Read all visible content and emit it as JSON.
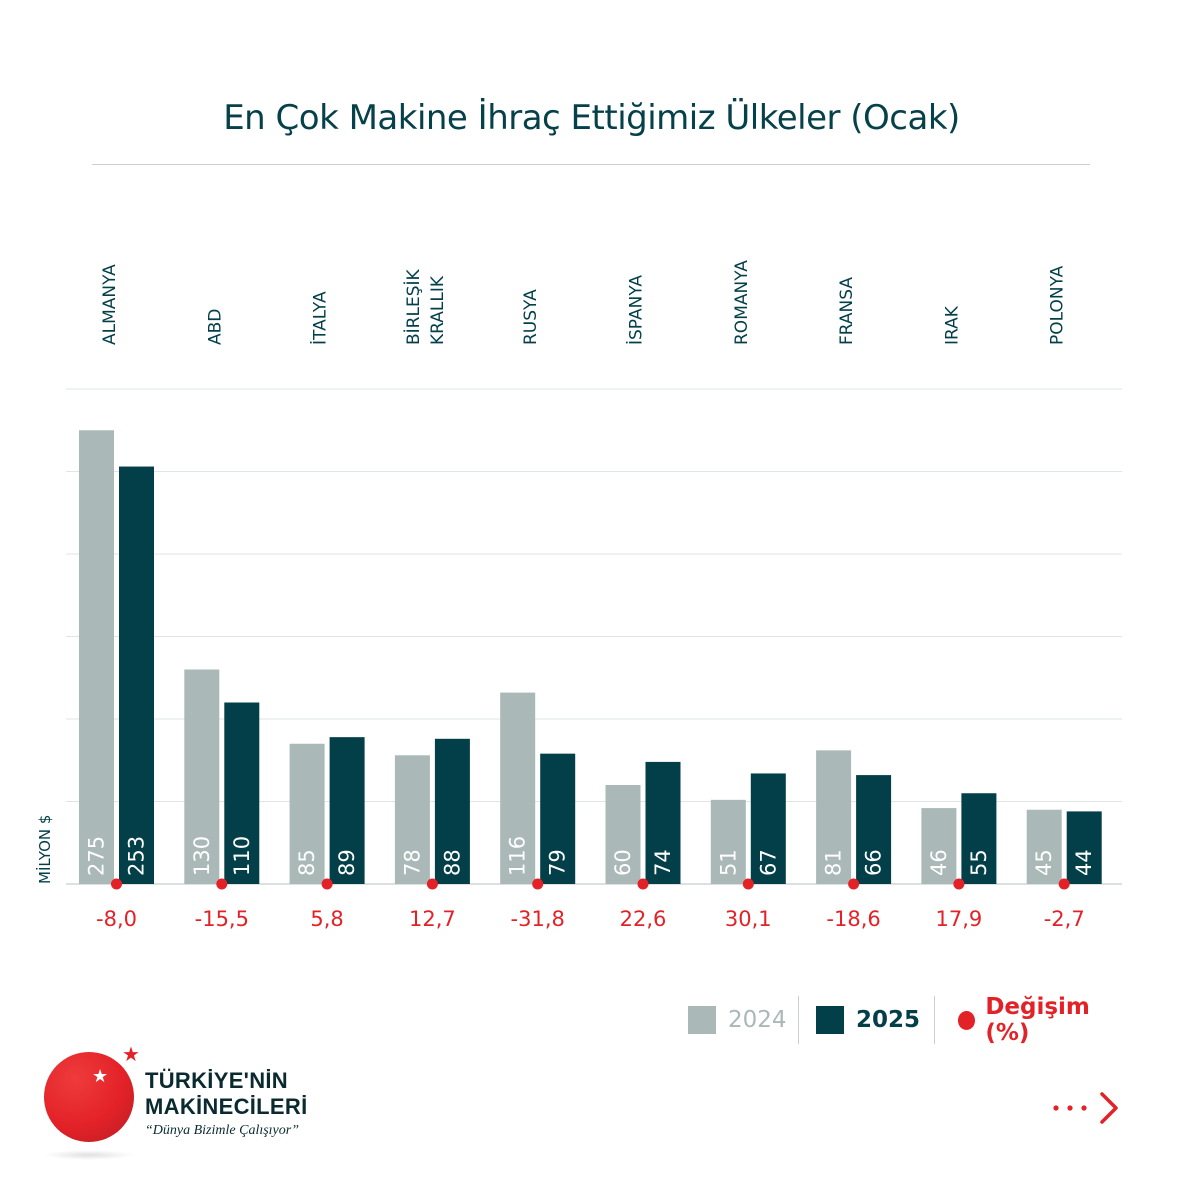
{
  "title": "En Çok Makine İhraç Ettiğimiz Ülkeler (Ocak)",
  "colors": {
    "bar_2024": "#aab8b8",
    "bar_2025": "#023f48",
    "change": "#e32228",
    "title": "#06414a",
    "grid": "#dfe4e4"
  },
  "chart_data": {
    "type": "bar",
    "title": "En Çok Makine İhraç Ettiğimiz Ülkeler (Ocak)",
    "ylabel": "MİLYON $",
    "ylim": [
      0,
      300
    ],
    "grid": true,
    "categories": [
      "ALMANYA",
      "ABD",
      "İTALYA",
      "BİRLEŞİK KRALLIK",
      "RUSYA",
      "İSPANYA",
      "ROMANYA",
      "FRANSA",
      "IRAK",
      "POLONYA"
    ],
    "category_lines": [
      [
        "ALMANYA"
      ],
      [
        "ABD"
      ],
      [
        "İTALYA"
      ],
      [
        "BİRLEŞİK",
        "KRALLIK"
      ],
      [
        "RUSYA"
      ],
      [
        "İSPANYA"
      ],
      [
        "ROMANYA"
      ],
      [
        "FRANSA"
      ],
      [
        "IRAK"
      ],
      [
        "POLONYA"
      ]
    ],
    "series": [
      {
        "name": "2024",
        "values": [
          275,
          130,
          85,
          78,
          116,
          60,
          51,
          81,
          46,
          45
        ]
      },
      {
        "name": "2025",
        "values": [
          253,
          110,
          89,
          88,
          79,
          74,
          67,
          66,
          55,
          44
        ]
      }
    ],
    "change": {
      "name": "Değişim (%)",
      "values": [
        -8.0,
        -15.5,
        5.8,
        12.7,
        -31.8,
        22.6,
        30.1,
        -18.6,
        17.9,
        -2.7
      ],
      "labels": [
        "-8,0",
        "-15,5",
        "5,8",
        "12,7",
        "-31,8",
        "22,6",
        "30,1",
        "-18,6",
        "17,9",
        "-2,7"
      ]
    },
    "legend": "bottom-right"
  },
  "legend": {
    "label_2024": "2024",
    "label_2025": "2025",
    "label_change": "Değişim (%)"
  },
  "logo": {
    "line1": "TÜRKİYE'NİN",
    "line2": "MAKİNECİLERİ",
    "tagline": "“Dünya Bizimle Çalışıyor”"
  },
  "icons": {
    "next": "dots-chevron-right-icon",
    "star": "star-icon"
  }
}
